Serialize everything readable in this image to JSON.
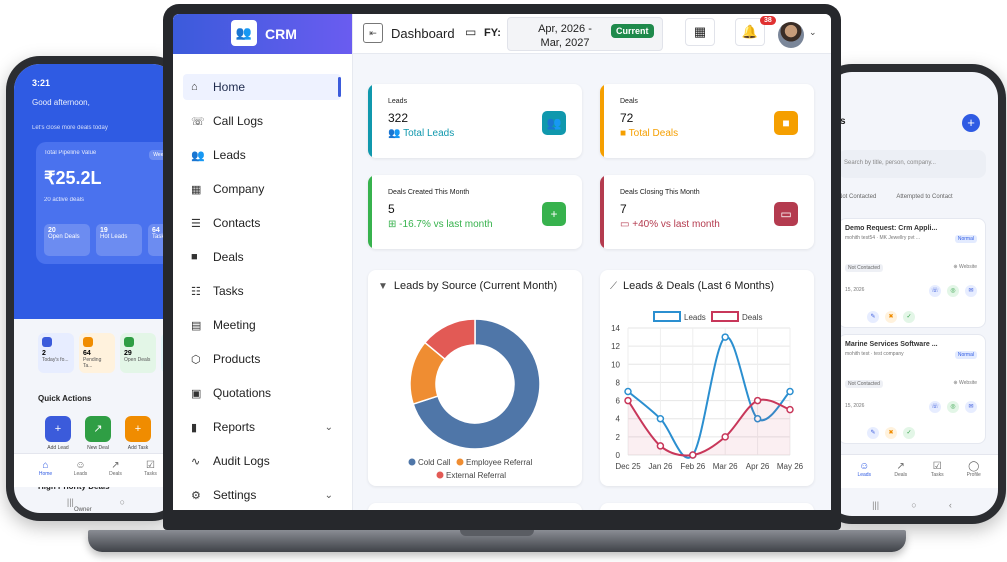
{
  "left_phone": {
    "status_time": "3:21",
    "greeting": "Good afternoon,",
    "subtitle": "Let's close more deals today",
    "pipeline": {
      "label": "Total Pipeline Value",
      "badge": "Week",
      "value": "₹25.2L",
      "active_deals": "20 active deals",
      "mini": [
        {
          "value": "20",
          "label": "Open Deals"
        },
        {
          "value": "19",
          "label": "Hot Leads"
        },
        {
          "value": "64",
          "label": "Tasks"
        }
      ]
    },
    "stats": [
      {
        "value": "2",
        "label": "Today's fo...",
        "color": "#3b5bdb",
        "bg": "#e7edff"
      },
      {
        "value": "64",
        "label": "Pending Ta...",
        "color": "#f08c00",
        "bg": "#fff2dd"
      },
      {
        "value": "29",
        "label": "Open Deals",
        "color": "#2f9e44",
        "bg": "#e3f6e7"
      },
      {
        "value": "",
        "label": "",
        "color": "#1098ad",
        "bg": "#e0f5f8"
      }
    ],
    "quick_actions_title": "Quick Actions",
    "quick_actions": [
      {
        "label": "Add Lead",
        "color": "#3b5bdb",
        "icon": "user-plus-icon"
      },
      {
        "label": "New Deal",
        "color": "#2f9e44",
        "icon": "trend-icon"
      },
      {
        "label": "Add Task",
        "color": "#f08c00",
        "icon": "plus-icon"
      }
    ],
    "high_priority_title": "High Priority Deals",
    "high_priority_col": "Owner",
    "nav": [
      "Home",
      "Leads",
      "Deals",
      "Tasks"
    ]
  },
  "right_phone": {
    "title": "s",
    "search_placeholder": "Search by title, person, company...",
    "tabs": [
      "Not Contacted",
      "Attempted to Contact"
    ],
    "items": [
      {
        "title": "Demo Request: Crm Appli...",
        "meta": "mohith test54 · MK Jewellry pvt ...",
        "tag": "Normal",
        "status": "Not Contacted",
        "source": "Website",
        "date": "15, 2026"
      },
      {
        "title": "Marine Services Software ...",
        "meta": "mohith test · test company",
        "tag": "Normal",
        "status": "Not Contacted",
        "source": "Website",
        "date": "15, 2026"
      }
    ],
    "nav": [
      "Leads",
      "Deals",
      "Tasks",
      "Profile"
    ]
  },
  "app": {
    "brand": "CRM",
    "menu": [
      {
        "label": "Home",
        "icon": "home-icon",
        "glyph": "⌂",
        "active": true,
        "chevron": false
      },
      {
        "label": "Call Logs",
        "icon": "phone-icon",
        "glyph": "☏",
        "active": false,
        "chevron": false
      },
      {
        "label": "Leads",
        "icon": "users-icon",
        "glyph": "👥",
        "active": false,
        "chevron": false
      },
      {
        "label": "Company",
        "icon": "building-icon",
        "glyph": "▦",
        "active": false,
        "chevron": false
      },
      {
        "label": "Contacts",
        "icon": "contact-icon",
        "glyph": "☰",
        "active": false,
        "chevron": false
      },
      {
        "label": "Deals",
        "icon": "briefcase-icon",
        "glyph": "■",
        "active": false,
        "chevron": false
      },
      {
        "label": "Tasks",
        "icon": "list-icon",
        "glyph": "☷",
        "active": false,
        "chevron": false
      },
      {
        "label": "Meeting",
        "icon": "calendar-icon",
        "glyph": "▤",
        "active": false,
        "chevron": false
      },
      {
        "label": "Products",
        "icon": "box-icon",
        "glyph": "⬡",
        "active": false,
        "chevron": false
      },
      {
        "label": "Quotations",
        "icon": "document-icon",
        "glyph": "▣",
        "active": false,
        "chevron": false
      },
      {
        "label": "Reports",
        "icon": "bar-chart-icon",
        "glyph": "▮",
        "active": false,
        "chevron": true
      },
      {
        "label": "Audit Logs",
        "icon": "activity-icon",
        "glyph": "∿",
        "active": false,
        "chevron": false
      },
      {
        "label": "Settings",
        "icon": "gear-icon",
        "glyph": "⚙",
        "active": false,
        "chevron": true
      }
    ],
    "topbar": {
      "title": "Dashboard",
      "fy_label": "FY:",
      "fy_range": "Apr, 2026 - Mar, 2027",
      "fy_badge": "Current",
      "notification_count": "38"
    },
    "stats": [
      {
        "label": "Leads",
        "value": "322",
        "sub": "Total Leads",
        "color": "#1098ad",
        "icon": "users-icon"
      },
      {
        "label": "Deals",
        "value": "72",
        "sub": "Total Deals",
        "color": "#f59f00",
        "icon": "briefcase-icon"
      },
      {
        "label": "Deals Created This Month",
        "value": "5",
        "sub": "-16.7% vs last month",
        "color": "#37b24d",
        "icon": "calendar-plus-icon"
      },
      {
        "label": "Deals Closing This Month",
        "value": "7",
        "sub": "+40% vs last month",
        "color": "#b43b4f",
        "icon": "calendar-icon"
      }
    ]
  },
  "chart_data": [
    {
      "type": "pie",
      "title": "Leads by Source (Current Month)",
      "categories": [
        "Cold Call",
        "Employee Referral",
        "External Referral"
      ],
      "values": [
        70,
        16,
        14
      ],
      "colors": [
        "#4f76a8",
        "#ef8d32",
        "#e25a55"
      ],
      "legend": "bottom"
    },
    {
      "type": "line",
      "title": "Leads & Deals (Last 6 Months)",
      "categories": [
        "Dec 25",
        "Jan 26",
        "Feb 26",
        "Mar 26",
        "Apr 26",
        "May 26"
      ],
      "ylim": [
        0,
        14
      ],
      "yticks": [
        0,
        2,
        4,
        6,
        8,
        10,
        12,
        14
      ],
      "grid": true,
      "legend": "top",
      "series": [
        {
          "name": "Leads",
          "values": [
            7,
            4,
            0,
            13,
            4,
            7
          ],
          "color": "#2b8fd0"
        },
        {
          "name": "Deals",
          "values": [
            6,
            1,
            0,
            2,
            6,
            5
          ],
          "color": "#c8375a"
        }
      ]
    }
  ]
}
